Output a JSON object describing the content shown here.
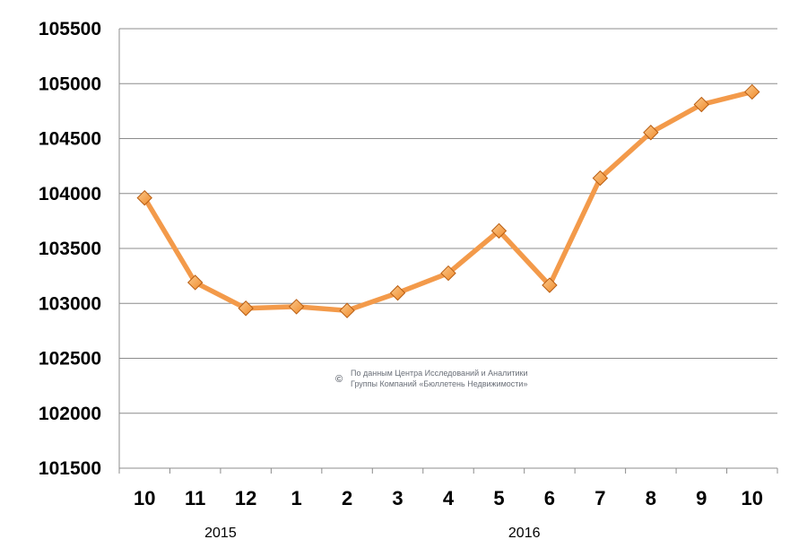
{
  "chart_data": {
    "type": "line",
    "title": "",
    "xlabel": "",
    "ylabel": "",
    "categories": [
      "10",
      "11",
      "12",
      "1",
      "2",
      "3",
      "4",
      "5",
      "6",
      "7",
      "8",
      "9",
      "10"
    ],
    "year_labels": [
      {
        "label": "2015",
        "category_index": 1.5
      },
      {
        "label": "2016",
        "category_index": 7.5
      }
    ],
    "series": [
      {
        "values": [
          103960,
          103190,
          102955,
          102970,
          102935,
          103095,
          103275,
          103660,
          103165,
          104140,
          104555,
          104810,
          104925
        ]
      }
    ],
    "ylim": [
      101500,
      105500
    ],
    "yticks": [
      101500,
      102000,
      102500,
      103000,
      103500,
      104000,
      104500,
      105000,
      105500
    ],
    "grid": true,
    "legend": "none",
    "colors": {
      "line": "#f39a4a",
      "marker_fill": "#f08a2a",
      "marker_light": "#fbc98c",
      "marker_stroke": "#b85d12",
      "grid": "#8c8c8c"
    },
    "watermark": {
      "symbol": "©",
      "line1": "По данным Центра Исследований и Аналитики",
      "line2": "Группы Компаний «Бюллетень Недвижимости»"
    }
  }
}
